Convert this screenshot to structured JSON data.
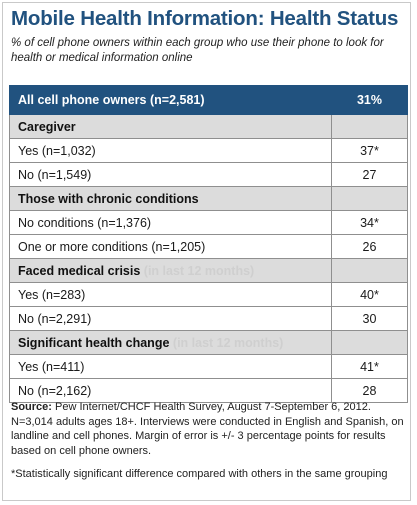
{
  "chart_data": {
    "type": "table",
    "title": "Mobile Health Information: Health Status",
    "subtitle": "% of cell phone owners within each group who use their phone to look for health or medical information online",
    "total": {
      "label": "All cell phone owners (n=2,581)",
      "value": "31%"
    },
    "groups": [
      {
        "name": "Caregiver",
        "qualifier": "",
        "rows": [
          {
            "label": "Yes (n=1,032)",
            "value": "37*"
          },
          {
            "label": "No (n=1,549)",
            "value": "27"
          }
        ]
      },
      {
        "name": "Those with chronic conditions",
        "qualifier": "",
        "rows": [
          {
            "label": "No conditions (n=1,376)",
            "value": "34*"
          },
          {
            "label": "One or more conditions (n=1,205)",
            "value": "26"
          }
        ]
      },
      {
        "name": "Faced medical crisis",
        "qualifier": "(in last 12 months)",
        "rows": [
          {
            "label": "Yes (n=283)",
            "value": "40*"
          },
          {
            "label": "No (n=2,291)",
            "value": "30"
          }
        ]
      },
      {
        "name": "Significant health change",
        "qualifier": "(in last 12 months)",
        "rows": [
          {
            "label": "Yes (n=411)",
            "value": "41*"
          },
          {
            "label": "No (n=2,162)",
            "value": "28"
          }
        ]
      }
    ],
    "source_label": "Source:",
    "source_text": "Pew Internet/CHCF Health Survey, August 7-September 6, 2012. N=3,014 adults ages 18+. Interviews were conducted in English and Spanish, on landline and cell phones. Margin of error is +/- 3 percentage points for results based on cell phone owners.",
    "footnote": "*Statistically  significant difference compared with others in the same grouping"
  },
  "colors": {
    "header": "#21527f",
    "group_bg": "#dcdcdc",
    "qualifier": "#cfcfcf"
  }
}
